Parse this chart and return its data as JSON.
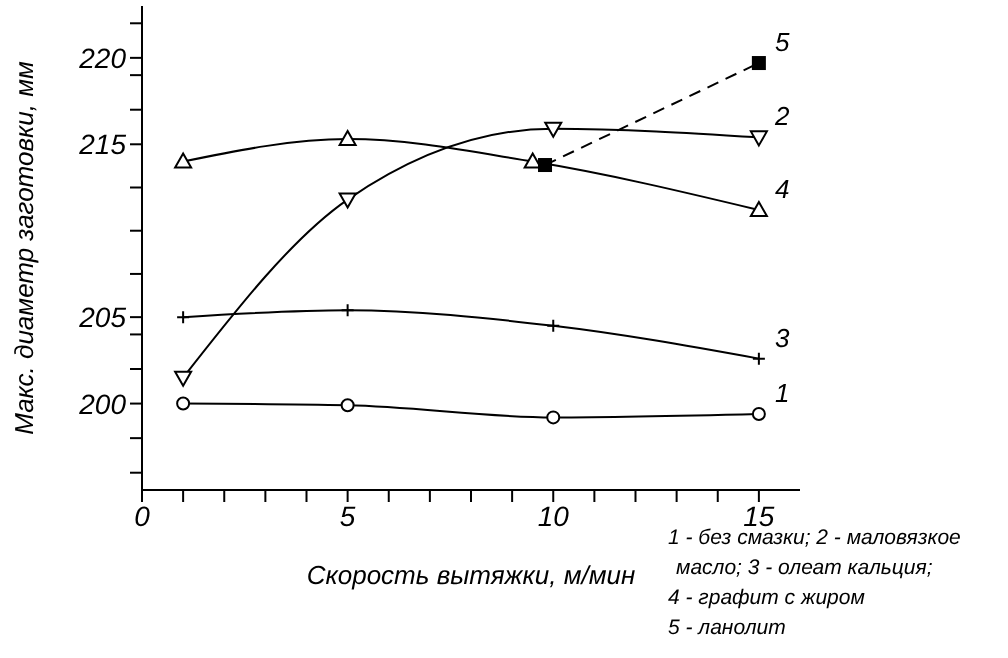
{
  "chart_data": {
    "type": "line",
    "xlabel": "Скорость вытяжки, м/мин",
    "ylabel": "Макс. диаметр заготовки, мм",
    "xlim": [
      0,
      16
    ],
    "ylim": [
      195,
      223
    ],
    "xticks": [
      0,
      {
        "value": 1,
        "label": null
      },
      {
        "value": 2,
        "label": null
      },
      {
        "value": 3,
        "label": null
      },
      {
        "value": 4,
        "label": null
      },
      5,
      {
        "value": 6,
        "label": null
      },
      {
        "value": 7,
        "label": null
      },
      {
        "value": 8,
        "label": null
      },
      {
        "value": 9,
        "label": null
      },
      10,
      {
        "value": 11,
        "label": null
      },
      {
        "value": 12,
        "label": null
      },
      {
        "value": 13,
        "label": null
      },
      {
        "value": 14,
        "label": null
      },
      15
    ],
    "yticks": [
      {
        "value": 196,
        "label": null
      },
      {
        "value": 198,
        "label": null
      },
      200,
      {
        "value": 202,
        "label": null
      },
      {
        "value": 204,
        "label": null
      },
      205,
      {
        "value": 207.5,
        "label": null
      },
      {
        "value": 210,
        "label": null
      },
      {
        "value": 212.5,
        "label": null
      },
      215,
      {
        "value": 217,
        "label": null
      },
      {
        "value": 219,
        "label": null
      },
      220,
      {
        "value": 222,
        "label": null
      }
    ],
    "grid": false,
    "series": [
      {
        "name": "1",
        "color": "#000000",
        "marker": "circle",
        "x": [
          1,
          5,
          10,
          15
        ],
        "values": [
          200,
          199.9,
          199.2,
          199.4
        ]
      },
      {
        "name": "2",
        "color": "#000000",
        "marker": "triangle-down",
        "x": [
          1,
          5,
          10,
          15
        ],
        "values": [
          201.5,
          211.8,
          215.9,
          215.4
        ]
      },
      {
        "name": "3",
        "color": "#000000",
        "marker": "cross",
        "x": [
          1,
          5,
          10,
          15
        ],
        "values": [
          205,
          205.4,
          204.5,
          202.6
        ]
      },
      {
        "name": "4",
        "color": "#000000",
        "marker": "triangle",
        "x": [
          1,
          5,
          9.5,
          15
        ],
        "values": [
          214,
          215.3,
          214,
          211.2
        ]
      },
      {
        "name": "5",
        "color": "#000000",
        "marker": "square",
        "line_style": "dashed",
        "x": [
          9.8,
          15
        ],
        "values": [
          213.8,
          219.7
        ]
      }
    ],
    "annotations": [
      "1 - без смазки; 2 - маловязкое",
      "масло; 3 - олеат кальция;",
      "4 - графит с жиром",
      "5 - ланолит"
    ]
  }
}
